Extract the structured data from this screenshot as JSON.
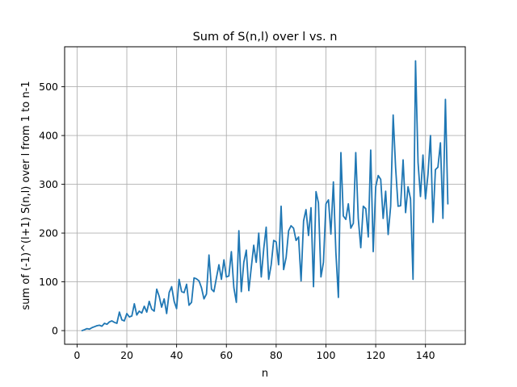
{
  "chart_data": {
    "type": "line",
    "title": "Sum of S(n,l) over l vs. n",
    "xlabel": "n",
    "ylabel": "sum of (-1)^(l+1) S(n,l) over l from 1 to n-1",
    "xlim": [
      -5,
      156
    ],
    "ylim": [
      -28,
      582
    ],
    "grid": true,
    "x_ticks": [
      0,
      20,
      40,
      60,
      80,
      100,
      120,
      140
    ],
    "y_ticks": [
      0,
      100,
      200,
      300,
      400,
      500
    ],
    "series": [
      {
        "color": "#1f77b4",
        "x": [
          2,
          3,
          4,
          5,
          6,
          7,
          8,
          9,
          10,
          11,
          12,
          13,
          14,
          15,
          16,
          17,
          18,
          19,
          20,
          21,
          22,
          23,
          24,
          25,
          26,
          27,
          28,
          29,
          30,
          31,
          32,
          33,
          34,
          35,
          36,
          37,
          38,
          39,
          40,
          41,
          42,
          43,
          44,
          45,
          46,
          47,
          48,
          49,
          50,
          51,
          52,
          53,
          54,
          55,
          56,
          57,
          58,
          59,
          60,
          61,
          62,
          63,
          64,
          65,
          66,
          67,
          68,
          69,
          70,
          71,
          72,
          73,
          74,
          75,
          76,
          77,
          78,
          79,
          80,
          81,
          82,
          83,
          84,
          85,
          86,
          87,
          88,
          89,
          90,
          91,
          92,
          93,
          94,
          95,
          96,
          97,
          98,
          99,
          100,
          101,
          102,
          103,
          104,
          105,
          106,
          107,
          108,
          109,
          110,
          111,
          112,
          113,
          114,
          115,
          116,
          117,
          118,
          119,
          120,
          121,
          122,
          123,
          124,
          125,
          126,
          127,
          128,
          129,
          130,
          131,
          132,
          133,
          134,
          135,
          136,
          137,
          138,
          139,
          140,
          141,
          142,
          143,
          144,
          145,
          146,
          147,
          148,
          149
        ],
        "y": [
          0,
          2,
          4,
          3,
          6,
          8,
          10,
          11,
          9,
          15,
          13,
          18,
          20,
          17,
          15,
          38,
          22,
          20,
          35,
          28,
          30,
          55,
          32,
          40,
          36,
          50,
          38,
          60,
          44,
          40,
          85,
          70,
          48,
          65,
          35,
          78,
          90,
          60,
          45,
          105,
          80,
          78,
          95,
          52,
          58,
          108,
          106,
          102,
          88,
          65,
          75,
          155,
          85,
          80,
          108,
          135,
          105,
          145,
          110,
          112,
          162,
          88,
          58,
          205,
          80,
          140,
          165,
          82,
          130,
          175,
          140,
          200,
          110,
          168,
          212,
          105,
          135,
          185,
          182,
          135,
          255,
          125,
          150,
          205,
          215,
          210,
          185,
          192,
          102,
          225,
          248,
          195,
          252,
          90,
          285,
          262,
          110,
          140,
          260,
          268,
          198,
          305,
          160,
          68,
          365,
          235,
          228,
          260,
          210,
          220,
          365,
          230,
          170,
          255,
          250,
          192,
          370,
          162,
          295,
          318,
          310,
          230,
          286,
          197,
          255,
          442,
          335,
          255,
          256,
          350,
          242,
          295,
          270,
          105,
          553,
          345,
          275,
          360,
          270,
          320,
          400,
          222,
          330,
          335,
          385,
          230,
          474,
          260
        ]
      }
    ]
  }
}
